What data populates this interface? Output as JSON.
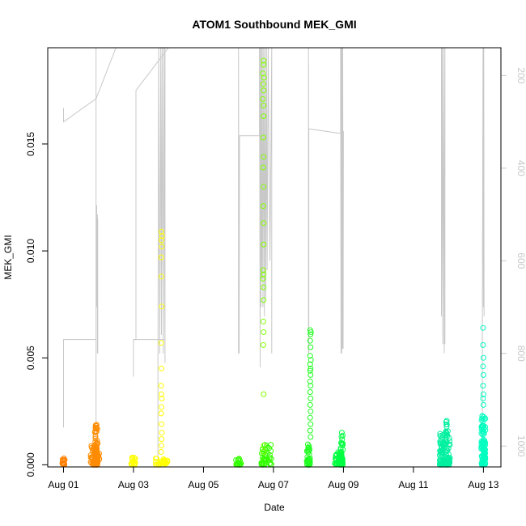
{
  "chart_data": {
    "type": "scatter",
    "title": "ATOM1 Southbound MEK_GMI",
    "xlabel": "Date",
    "ylabel": "MEK_GMI",
    "x_unit": "days (Aug 01 = 0)",
    "xlim": [
      -0.45,
      12.5
    ],
    "ylim": [
      -0.0001,
      0.0195
    ],
    "x_ticks": [
      0,
      2,
      4,
      6,
      8,
      10,
      12
    ],
    "x_tick_labels": [
      "Aug 01",
      "Aug 03",
      "Aug 05",
      "Aug 07",
      "Aug 09",
      "Aug 11",
      "Aug 13"
    ],
    "y_ticks": [
      0.0,
      0.005,
      0.01,
      0.015
    ],
    "y_tick_labels": [
      "0.000",
      "0.005",
      "0.010",
      "0.015"
    ],
    "y2_ticks": [
      200,
      400,
      600,
      800,
      1000
    ],
    "y2_tick_labels": [
      "200",
      "400",
      "600",
      "800",
      "1000"
    ],
    "y2_lim": [
      1045,
      140
    ],
    "grid": false,
    "legend": "none",
    "colors": {
      "aug01": "#FF8000",
      "aug02": "#FF8C00",
      "aug03": "#FFFF00",
      "aug06": "#33FF00",
      "aug07": "#80FF00",
      "aug08": "#22FF22",
      "aug09": "#00FF40",
      "aug12": "#00F0A0",
      "aug13": "#00FFC0",
      "trace": "#C8C8C8"
    },
    "series": [
      {
        "color_key": "aug01",
        "clusters": [
          {
            "x": 0.0,
            "w": 0.08,
            "ymin": 0.0,
            "ymax": 0.0003,
            "n": 18
          }
        ]
      },
      {
        "color_key": "aug02",
        "clusters": [
          {
            "x": 0.9,
            "w": 0.25,
            "ymin": 0.0,
            "ymax": 0.001,
            "n": 60
          },
          {
            "x": 0.93,
            "w": 0.08,
            "ymin": 0.0,
            "ymax": 0.0019,
            "n": 45
          }
        ]
      },
      {
        "color_key": "aug03",
        "clusters": [
          {
            "x": 2.0,
            "w": 0.15,
            "ymin": 0.0,
            "ymax": 0.0004,
            "n": 18
          },
          {
            "x": 2.8,
            "w": 0.35,
            "ymin": 0.0,
            "ymax": 0.0003,
            "n": 28
          }
        ],
        "points": [
          [
            2.8,
            0.0109
          ],
          [
            2.82,
            0.0107
          ],
          [
            2.8,
            0.0105
          ],
          [
            2.81,
            0.0102
          ],
          [
            2.79,
            0.0097
          ],
          [
            2.8,
            0.0088
          ],
          [
            2.81,
            0.0074
          ],
          [
            2.79,
            0.0057
          ],
          [
            2.8,
            0.0045
          ],
          [
            2.79,
            0.0037
          ],
          [
            2.8,
            0.0033
          ],
          [
            2.81,
            0.0031
          ],
          [
            2.8,
            0.0027
          ],
          [
            2.79,
            0.0024
          ],
          [
            2.8,
            0.0019
          ],
          [
            2.81,
            0.0015
          ],
          [
            2.8,
            0.0012
          ],
          [
            2.8,
            0.0009
          ],
          [
            2.79,
            0.0006
          ]
        ]
      },
      {
        "color_key": "aug06",
        "clusters": [
          {
            "x": 5.0,
            "w": 0.15,
            "ymin": 0.0,
            "ymax": 0.0003,
            "n": 18
          },
          {
            "x": 5.8,
            "w": 0.3,
            "ymin": 0.0,
            "ymax": 0.001,
            "n": 40
          }
        ]
      },
      {
        "color_key": "aug07",
        "points": [
          [
            5.72,
            0.0189
          ],
          [
            5.72,
            0.0187
          ],
          [
            5.7,
            0.0183
          ],
          [
            5.73,
            0.0181
          ],
          [
            5.71,
            0.0178
          ],
          [
            5.72,
            0.0175
          ],
          [
            5.7,
            0.0171
          ],
          [
            5.72,
            0.0168
          ],
          [
            5.72,
            0.0163
          ],
          [
            5.71,
            0.0153
          ],
          [
            5.72,
            0.0144
          ],
          [
            5.71,
            0.0139
          ],
          [
            5.72,
            0.013
          ],
          [
            5.71,
            0.0121
          ],
          [
            5.72,
            0.0113
          ],
          [
            5.72,
            0.0103
          ],
          [
            5.71,
            0.0091
          ],
          [
            5.72,
            0.0089
          ],
          [
            5.7,
            0.0087
          ],
          [
            5.72,
            0.0083
          ],
          [
            5.72,
            0.0077
          ],
          [
            5.71,
            0.0067
          ],
          [
            5.72,
            0.0062
          ],
          [
            5.71,
            0.0056
          ],
          [
            5.72,
            0.0033
          ],
          [
            5.72,
            0.0009
          ],
          [
            5.72,
            0.0006
          ]
        ]
      },
      {
        "color_key": "aug08",
        "clusters": [
          {
            "x": 7.0,
            "w": 0.1,
            "ymin": 0.0,
            "ymax": 0.001,
            "n": 40
          }
        ],
        "points": [
          [
            7.05,
            0.0063
          ],
          [
            7.07,
            0.0062
          ],
          [
            7.06,
            0.0061
          ],
          [
            7.05,
            0.0058
          ],
          [
            7.06,
            0.0055
          ],
          [
            7.05,
            0.0051
          ],
          [
            7.07,
            0.0049
          ],
          [
            7.05,
            0.0047
          ],
          [
            7.06,
            0.0045
          ],
          [
            7.05,
            0.0044
          ],
          [
            7.06,
            0.0042
          ],
          [
            7.05,
            0.0039
          ],
          [
            7.06,
            0.0037
          ],
          [
            7.05,
            0.0034
          ],
          [
            7.06,
            0.0031
          ],
          [
            7.05,
            0.0028
          ],
          [
            7.06,
            0.0025
          ],
          [
            7.05,
            0.0022
          ],
          [
            7.06,
            0.0019
          ],
          [
            7.05,
            0.0016
          ],
          [
            7.06,
            0.0013
          ]
        ]
      },
      {
        "color_key": "aug09",
        "clusters": [
          {
            "x": 7.85,
            "w": 0.2,
            "ymin": 0.0,
            "ymax": 0.0006,
            "n": 40
          },
          {
            "x": 7.95,
            "w": 0.07,
            "ymin": 0.0,
            "ymax": 0.0016,
            "n": 30
          }
        ]
      },
      {
        "color_key": "aug12",
        "clusters": [
          {
            "x": 10.9,
            "w": 0.3,
            "ymin": 0.0,
            "ymax": 0.0017,
            "n": 110
          },
          {
            "x": 10.93,
            "w": 0.05,
            "ymin": 0.0015,
            "ymax": 0.0021,
            "n": 8
          }
        ]
      },
      {
        "color_key": "aug13",
        "clusters": [
          {
            "x": 12.0,
            "w": 0.12,
            "ymin": 0.0,
            "ymax": 0.0024,
            "n": 90
          }
        ],
        "points": [
          [
            11.99,
            0.0064
          ],
          [
            11.99,
            0.0056
          ],
          [
            12.0,
            0.005
          ],
          [
            11.99,
            0.0046
          ],
          [
            12.0,
            0.0042
          ],
          [
            11.99,
            0.0037
          ],
          [
            12.0,
            0.0033
          ],
          [
            11.99,
            0.0031
          ],
          [
            12.0,
            0.0028
          ]
        ]
      }
    ],
    "trace": {
      "color_key": "trace",
      "axis": "right",
      "segments": [
        [
          [
            0.0,
            960
          ],
          [
            0.0,
            770
          ],
          [
            0.93,
            770
          ],
          [
            0.93,
            760
          ],
          [
            0.93,
            300
          ],
          [
            0.93,
            120
          ],
          [
            0.93,
            1045
          ]
        ],
        [
          [
            0.95,
            480
          ],
          [
            0.95,
            700
          ],
          [
            0.97,
            500
          ],
          [
            0.97,
            800
          ],
          [
            0.98,
            510
          ],
          [
            0.98,
            800
          ]
        ],
        [
          [
            0.0,
            270
          ],
          [
            0.0,
            300
          ],
          [
            0.93,
            250
          ],
          [
            1.5,
            140
          ]
        ],
        [
          [
            2.0,
            850
          ],
          [
            2.0,
            770
          ],
          [
            2.07,
            770
          ],
          [
            2.07,
            232
          ],
          [
            3.0,
            140
          ]
        ],
        [
          [
            2.7,
            1045
          ],
          [
            2.7,
            800
          ],
          [
            2.72,
            140
          ],
          [
            2.75,
            800
          ],
          [
            2.78,
            140
          ],
          [
            2.8,
            760
          ],
          [
            2.82,
            140
          ],
          [
            2.85,
            800
          ],
          [
            2.87,
            140
          ],
          [
            2.9,
            820
          ],
          [
            2.9,
            140
          ],
          [
            2.9,
            800
          ]
        ],
        [
          [
            2.0,
            770
          ],
          [
            2.9,
            770
          ]
        ],
        [
          [
            5.0,
            800
          ],
          [
            5.0,
            140
          ],
          [
            5.02,
            800
          ],
          [
            5.03,
            330
          ],
          [
            5.6,
            330
          ],
          [
            5.6,
            140
          ],
          [
            5.62,
            830
          ],
          [
            5.62,
            700
          ],
          [
            5.63,
            140
          ],
          [
            5.64,
            700
          ],
          [
            5.65,
            140
          ],
          [
            5.67,
            640
          ],
          [
            5.68,
            140
          ],
          [
            5.7,
            700
          ],
          [
            5.72,
            140
          ],
          [
            5.74,
            720
          ],
          [
            5.76,
            140
          ],
          [
            5.78,
            680
          ],
          [
            5.8,
            140
          ],
          [
            5.82,
            620
          ],
          [
            5.85,
            140
          ],
          [
            5.9,
            600
          ],
          [
            5.95,
            140
          ],
          [
            5.95,
            800
          ]
        ],
        [
          [
            7.0,
            800
          ],
          [
            7.0,
            140
          ],
          [
            7.01,
            800
          ],
          [
            7.01,
            315
          ],
          [
            7.92,
            325
          ],
          [
            7.92,
            140
          ],
          [
            7.93,
            800
          ],
          [
            7.94,
            140
          ],
          [
            7.95,
            800
          ],
          [
            7.96,
            140
          ],
          [
            7.97,
            790
          ],
          [
            7.98,
            140
          ],
          [
            7.99,
            790
          ],
          [
            8.0,
            320
          ]
        ],
        [
          [
            10.8,
            140
          ],
          [
            10.8,
            720
          ],
          [
            10.82,
            140
          ],
          [
            10.84,
            780
          ],
          [
            10.86,
            140
          ],
          [
            10.88,
            800
          ],
          [
            10.9,
            140
          ],
          [
            10.9,
            780
          ]
        ],
        [
          [
            11.97,
            1045
          ],
          [
            11.97,
            720
          ],
          [
            11.99,
            140
          ],
          [
            12.0,
            700
          ],
          [
            12.01,
            140
          ],
          [
            12.02,
            720
          ]
        ]
      ]
    }
  }
}
